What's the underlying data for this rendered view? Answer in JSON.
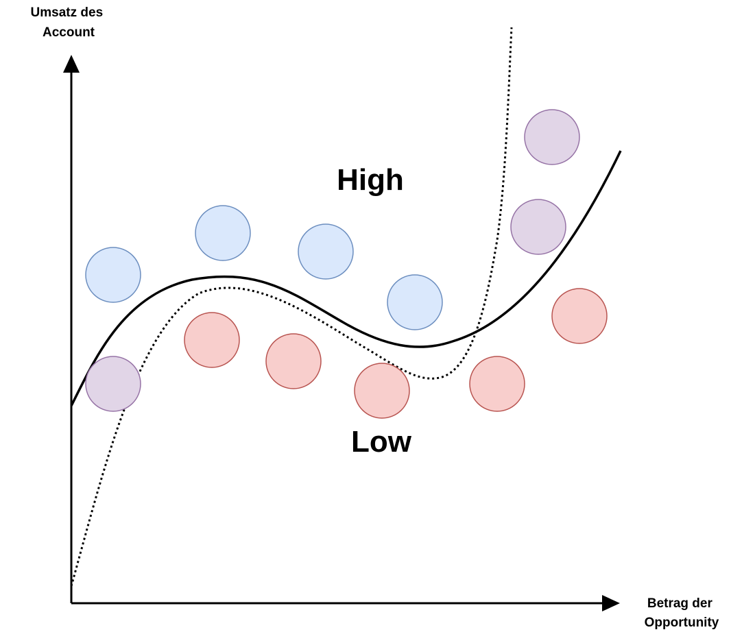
{
  "axes": {
    "y_label_lines": [
      "Umsatz des",
      "Account"
    ],
    "x_label_lines": [
      "Betrag der",
      "Opportunity"
    ]
  },
  "regions": {
    "high": "High",
    "low": "Low"
  },
  "colors": {
    "axis": "#000000",
    "blue_fill": "#dae8fc",
    "blue_stroke": "#6c8ebf",
    "red_fill": "#f8cecc",
    "red_stroke": "#b85450",
    "purple_fill": "#e1d5e7",
    "purple_stroke": "#9673a6",
    "curve": "#000000"
  },
  "points": [
    {
      "class": "blue"
    },
    {
      "class": "blue"
    },
    {
      "class": "blue"
    },
    {
      "class": "blue"
    },
    {
      "class": "red"
    },
    {
      "class": "red"
    },
    {
      "class": "red"
    },
    {
      "class": "red"
    },
    {
      "class": "red"
    },
    {
      "class": "purple"
    },
    {
      "class": "purple"
    },
    {
      "class": "purple"
    }
  ],
  "curves": [
    {
      "style": "solid"
    },
    {
      "style": "dotted"
    }
  ]
}
